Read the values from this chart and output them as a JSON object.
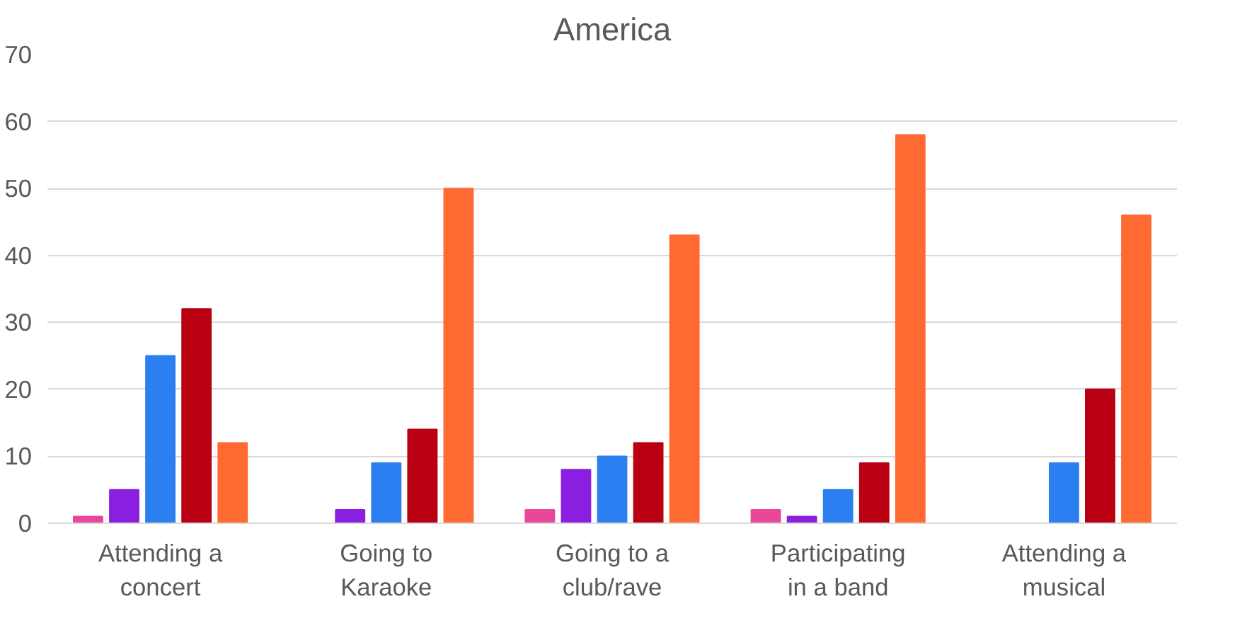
{
  "chart_data": {
    "type": "bar",
    "title": "America",
    "categories": [
      "Attending a concert",
      "Going to Karaoke",
      "Going to a club/rave",
      "Participating in a band",
      "Attending a musical"
    ],
    "series": [
      {
        "color": "#e8479a",
        "values": [
          1,
          0,
          2,
          2,
          0
        ]
      },
      {
        "color": "#8a1fe0",
        "values": [
          5,
          2,
          8,
          1,
          0
        ]
      },
      {
        "color": "#2b7ff0",
        "values": [
          25,
          9,
          10,
          5,
          9
        ]
      },
      {
        "color": "#b80012",
        "values": [
          32,
          14,
          12,
          9,
          20
        ]
      },
      {
        "color": "#ff6a33",
        "values": [
          12,
          50,
          43,
          58,
          46
        ]
      }
    ],
    "ylim": [
      0,
      70
    ],
    "yticks": [
      0,
      10,
      20,
      30,
      40,
      50,
      60,
      70
    ],
    "grid": "y"
  }
}
